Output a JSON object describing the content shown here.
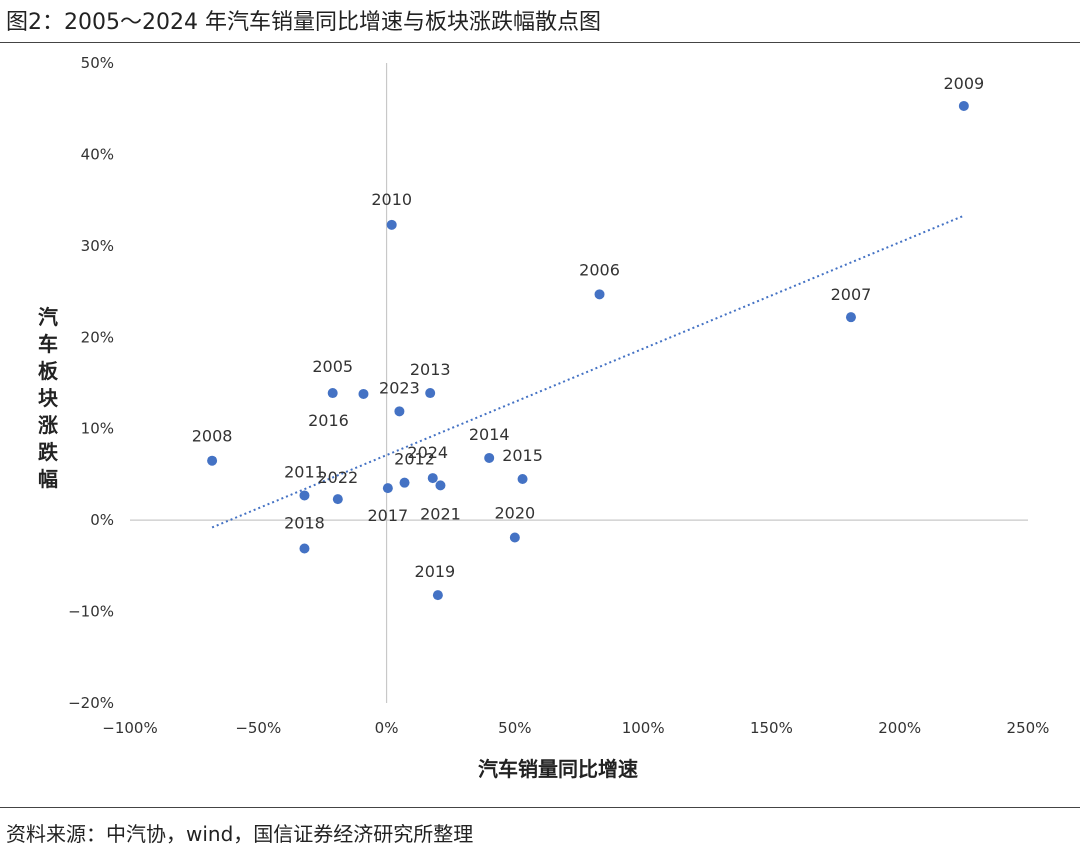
{
  "figure_title": "图2：2005～2024 年汽车销量同比增速与板块涨跌幅散点图",
  "source_note": "资料来源：中汽协，wind，国信证券经济研究所整理",
  "chart_data": {
    "type": "scatter",
    "title": "图2：2005～2024 年汽车销量同比增速与板块涨跌幅散点图",
    "xlabel": "汽车销量同比增速",
    "ylabel": "汽车板块涨跌幅",
    "xlim": [
      -100,
      250
    ],
    "ylim": [
      -20,
      50
    ],
    "x_ticks": [
      -100,
      -50,
      0,
      50,
      100,
      150,
      200,
      250
    ],
    "y_ticks": [
      -20,
      -10,
      0,
      10,
      20,
      30,
      40,
      50
    ],
    "x_tick_labels": [
      "−100%",
      "−50%",
      "0%",
      "50%",
      "100%",
      "150%",
      "200%",
      "250%"
    ],
    "y_tick_labels": [
      "−20%",
      "−10%",
      "0%",
      "10%",
      "20%",
      "30%",
      "40%",
      "50%"
    ],
    "point_color": "#4472c4",
    "trend_color": "#4472c4",
    "points": [
      {
        "label": "2005",
        "x": -21,
        "y": 13.9
      },
      {
        "label": "2006",
        "x": 83,
        "y": 24.7
      },
      {
        "label": "2007",
        "x": 181,
        "y": 22.2
      },
      {
        "label": "2008",
        "x": -68,
        "y": 6.5
      },
      {
        "label": "2009",
        "x": 225,
        "y": 45.3
      },
      {
        "label": "2010",
        "x": 2,
        "y": 32.3
      },
      {
        "label": "2011",
        "x": -32,
        "y": 2.7
      },
      {
        "label": "2012",
        "x": 7,
        "y": 4.1
      },
      {
        "label": "2013",
        "x": 17,
        "y": 13.9
      },
      {
        "label": "2014",
        "x": 40,
        "y": 6.8
      },
      {
        "label": "2015",
        "x": 53,
        "y": 4.5
      },
      {
        "label": "2016",
        "x": -9,
        "y": 13.8
      },
      {
        "label": "2017",
        "x": 0.5,
        "y": 3.5
      },
      {
        "label": "2018",
        "x": -32,
        "y": -3.1
      },
      {
        "label": "2019",
        "x": 20,
        "y": -8.2
      },
      {
        "label": "2020",
        "x": 50,
        "y": -1.9
      },
      {
        "label": "2021",
        "x": 21,
        "y": 3.8
      },
      {
        "label": "2022",
        "x": -19,
        "y": 2.3
      },
      {
        "label": "2023",
        "x": 5,
        "y": 11.9
      },
      {
        "label": "2024",
        "x": 18,
        "y": 4.6
      }
    ],
    "trendline": {
      "x": [
        -68,
        225
      ],
      "y": [
        -0.8,
        33.3
      ]
    }
  }
}
